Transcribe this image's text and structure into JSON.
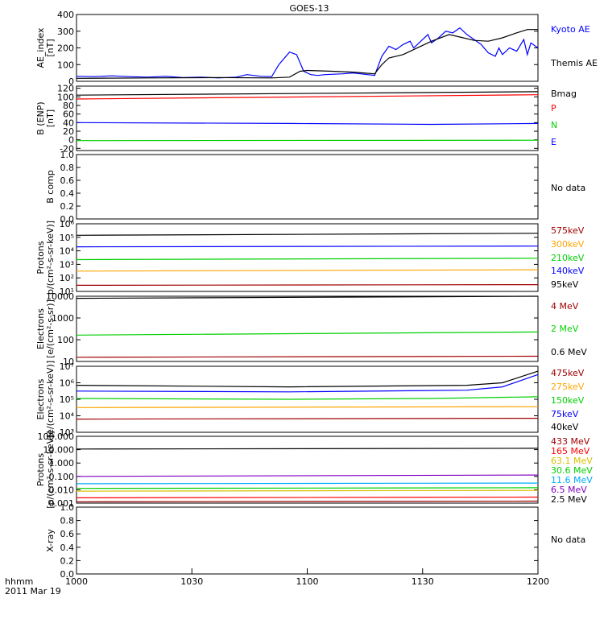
{
  "title": "GOES-13",
  "footer": {
    "time_label": "hhmm",
    "date_label": "2011 Mar 19"
  },
  "x_ticks": [
    "1000",
    "1030",
    "1100",
    "1130",
    "1200"
  ],
  "colors": {
    "black": "#000000",
    "blue": "#0000ff",
    "red": "#ff0000",
    "green": "#00d000",
    "darkred": "#a00000",
    "orange": "#ffa500",
    "teal": "#00aaaa",
    "gold": "#d8c000",
    "lightblue": "#00aaff",
    "purple": "#8000c0"
  },
  "chart_data": [
    {
      "id": "ae",
      "type": "line",
      "ylabel": [
        "AE_index",
        "[nT]"
      ],
      "y_ticks": [
        "0",
        "100",
        "200",
        "300",
        "400"
      ],
      "ylim": [
        0,
        400
      ],
      "x": [
        1000,
        1200
      ],
      "series": [
        {
          "name": "Kyoto AE",
          "color": "blue",
          "points": [
            [
              0,
              30
            ],
            [
              5,
              28
            ],
            [
              10,
              33
            ],
            [
              15,
              28
            ],
            [
              20,
              25
            ],
            [
              25,
              30
            ],
            [
              30,
              22
            ],
            [
              35,
              25
            ],
            [
              40,
              20
            ],
            [
              45,
              25
            ],
            [
              48,
              40
            ],
            [
              52,
              30
            ],
            [
              55,
              28
            ],
            [
              57,
              100
            ],
            [
              60,
              175
            ],
            [
              62,
              160
            ],
            [
              64,
              60
            ],
            [
              66,
              40
            ],
            [
              68,
              35
            ],
            [
              70,
              40
            ],
            [
              75,
              45
            ],
            [
              78,
              50
            ],
            [
              82,
              40
            ],
            [
              84,
              35
            ],
            [
              86,
              150
            ],
            [
              88,
              210
            ],
            [
              90,
              190
            ],
            [
              92,
              220
            ],
            [
              94,
              240
            ],
            [
              95,
              200
            ],
            [
              97,
              240
            ],
            [
              99,
              280
            ],
            [
              100,
              230
            ],
            [
              102,
              260
            ],
            [
              104,
              300
            ],
            [
              106,
              290
            ],
            [
              108,
              320
            ],
            [
              110,
              280
            ],
            [
              112,
              250
            ],
            [
              114,
              220
            ],
            [
              116,
              170
            ],
            [
              118,
              150
            ],
            [
              119,
              200
            ],
            [
              120,
              160
            ],
            [
              122,
              200
            ],
            [
              124,
              180
            ],
            [
              126,
              250
            ],
            [
              127,
              160
            ],
            [
              128,
              230
            ],
            [
              130,
              200
            ]
          ]
        },
        {
          "name": "Themis AE",
          "color": "black",
          "points": [
            [
              0,
              18
            ],
            [
              20,
              20
            ],
            [
              40,
              22
            ],
            [
              55,
              20
            ],
            [
              60,
              25
            ],
            [
              63,
              60
            ],
            [
              65,
              65
            ],
            [
              72,
              60
            ],
            [
              78,
              55
            ],
            [
              84,
              45
            ],
            [
              86,
              100
            ],
            [
              88,
              140
            ],
            [
              92,
              160
            ],
            [
              95,
              190
            ],
            [
              100,
              240
            ],
            [
              105,
              280
            ],
            [
              108,
              265
            ],
            [
              112,
              245
            ],
            [
              116,
              240
            ],
            [
              120,
              260
            ],
            [
              124,
              290
            ],
            [
              127,
              310
            ],
            [
              130,
              310
            ]
          ]
        }
      ]
    },
    {
      "id": "bfield",
      "type": "line",
      "ylabel": [
        "B (ENP)",
        "[nT]"
      ],
      "y_ticks": [
        "-20",
        "0",
        "20",
        "40",
        "60",
        "80",
        "100",
        "120"
      ],
      "ylim": [
        -25,
        125
      ],
      "x": [
        1000,
        1200
      ],
      "series": [
        {
          "name": "Bmag",
          "color": "black",
          "points": [
            [
              0,
              104
            ],
            [
              130,
              112
            ]
          ]
        },
        {
          "name": "P",
          "color": "red",
          "points": [
            [
              0,
              95
            ],
            [
              130,
              105
            ]
          ]
        },
        {
          "name": "N",
          "color": "green",
          "points": [
            [
              0,
              -2
            ],
            [
              130,
              -1
            ]
          ]
        },
        {
          "name": "E",
          "color": "blue",
          "points": [
            [
              0,
              40
            ],
            [
              60,
              38
            ],
            [
              100,
              36
            ],
            [
              130,
              38
            ]
          ]
        }
      ]
    },
    {
      "id": "bcomp",
      "type": "line",
      "ylabel": [
        "B comp"
      ],
      "y_ticks": [
        "0.0",
        "0.2",
        "0.4",
        "0.6",
        "0.8",
        "1.0"
      ],
      "ylim": [
        0,
        1
      ],
      "no_data": "No data",
      "series": []
    },
    {
      "id": "mageprotons",
      "type": "line",
      "log": true,
      "ylabel": [
        "Protons",
        "p/(cm²-s-sr-keV)]"
      ],
      "y_ticks": [
        "10¹",
        "10²",
        "10³",
        "10⁴",
        "10⁵",
        "10⁶"
      ],
      "ylim": [
        1,
        6
      ],
      "series": [
        {
          "name": "575keV",
          "color": "darkred",
          "points": [
            [
              0,
              1.45
            ],
            [
              130,
              1.5
            ]
          ]
        },
        {
          "name": "300keV",
          "color": "orange",
          "points": [
            [
              0,
              2.5
            ],
            [
              130,
              2.6
            ]
          ]
        },
        {
          "name": "210keV",
          "color": "green",
          "points": [
            [
              0,
              3.35
            ],
            [
              130,
              3.45
            ]
          ]
        },
        {
          "name": "140keV",
          "color": "blue",
          "points": [
            [
              0,
              4.3
            ],
            [
              130,
              4.35
            ]
          ]
        },
        {
          "name": "95keV",
          "color": "black",
          "points": [
            [
              0,
              5.15
            ],
            [
              130,
              5.3
            ]
          ]
        }
      ]
    },
    {
      "id": "epelectrons",
      "type": "line",
      "log": true,
      "ylabel": [
        "Electrons",
        "[e/(cm²-s-sr)]"
      ],
      "y_ticks": [
        "10",
        "100",
        "1000",
        "10000"
      ],
      "ylim": [
        1,
        4.1
      ],
      "series": [
        {
          "name": "4 MeV",
          "color": "darkred",
          "points": [
            [
              0,
              1.2
            ],
            [
              130,
              1.25
            ]
          ]
        },
        {
          "name": "2 MeV",
          "color": "green",
          "points": [
            [
              0,
              2.25
            ],
            [
              130,
              2.4
            ]
          ]
        },
        {
          "name": "0.6 MeV",
          "color": "black",
          "points": [
            [
              0,
              4.0
            ],
            [
              130,
              4.1
            ]
          ]
        }
      ]
    },
    {
      "id": "magedelectrons",
      "type": "line",
      "log": true,
      "ylabel": [
        "Electrons",
        "[e/(cm²-s-sr-keV)]"
      ],
      "y_ticks": [
        "10³",
        "10⁴",
        "10⁵",
        "10⁶",
        "10⁷"
      ],
      "ylim": [
        3,
        7
      ],
      "series": [
        {
          "name": "475keV",
          "color": "darkred",
          "points": [
            [
              0,
              3.8
            ],
            [
              130,
              3.85
            ]
          ]
        },
        {
          "name": "275keV",
          "color": "orange",
          "points": [
            [
              0,
              4.5
            ],
            [
              130,
              4.55
            ]
          ]
        },
        {
          "name": "150keV",
          "color": "green",
          "points": [
            [
              0,
              5.05
            ],
            [
              60,
              5.0
            ],
            [
              100,
              5.05
            ],
            [
              130,
              5.15
            ]
          ]
        },
        {
          "name": "75keV",
          "color": "blue",
          "points": [
            [
              0,
              5.5
            ],
            [
              60,
              5.45
            ],
            [
              110,
              5.55
            ],
            [
              120,
              5.75
            ],
            [
              130,
              6.5
            ]
          ]
        },
        {
          "name": "40keV",
          "color": "black",
          "points": [
            [
              0,
              5.85
            ],
            [
              60,
              5.75
            ],
            [
              110,
              5.85
            ],
            [
              120,
              6.0
            ],
            [
              130,
              6.7
            ]
          ]
        }
      ]
    },
    {
      "id": "epsprotons",
      "type": "line",
      "log": true,
      "ylabel": [
        "Protons",
        "[p/(cm²-s-sr-keV)]"
      ],
      "y_ticks": [
        "0.001",
        "0.010",
        "0.100",
        "1.000",
        "10.000",
        "100.000"
      ],
      "ylim": [
        -3,
        2
      ],
      "series": [
        {
          "name": "433 MeV",
          "color": "darkred",
          "points": [
            [
              0,
              -2.9
            ],
            [
              130,
              -2.85
            ]
          ]
        },
        {
          "name": "165 MeV",
          "color": "red",
          "points": [
            [
              0,
              -2.6
            ],
            [
              130,
              -2.55
            ]
          ]
        },
        {
          "name": "63.1 MeV",
          "color": "gold",
          "points": [
            [
              0,
              -2.1
            ],
            [
              130,
              -2.05
            ]
          ]
        },
        {
          "name": "30.6 MeV",
          "color": "green",
          "points": [
            [
              0,
              -1.9
            ],
            [
              130,
              -1.85
            ]
          ]
        },
        {
          "name": "11.6 MeV",
          "color": "lightblue",
          "points": [
            [
              0,
              -1.55
            ],
            [
              130,
              -1.5
            ]
          ]
        },
        {
          "name": "6.5 MeV",
          "color": "purple",
          "points": [
            [
              0,
              -1.0
            ],
            [
              130,
              -0.9
            ]
          ]
        },
        {
          "name": "2.5 MeV",
          "color": "black",
          "points": [
            [
              0,
              1.05
            ],
            [
              130,
              1.1
            ]
          ]
        }
      ]
    },
    {
      "id": "xray",
      "type": "line",
      "ylabel": [
        "X-ray"
      ],
      "y_ticks": [
        "0.0",
        "0.2",
        "0.4",
        "0.6",
        "0.8",
        "1.0"
      ],
      "ylim": [
        0,
        1
      ],
      "no_data": "No data",
      "series": []
    }
  ]
}
